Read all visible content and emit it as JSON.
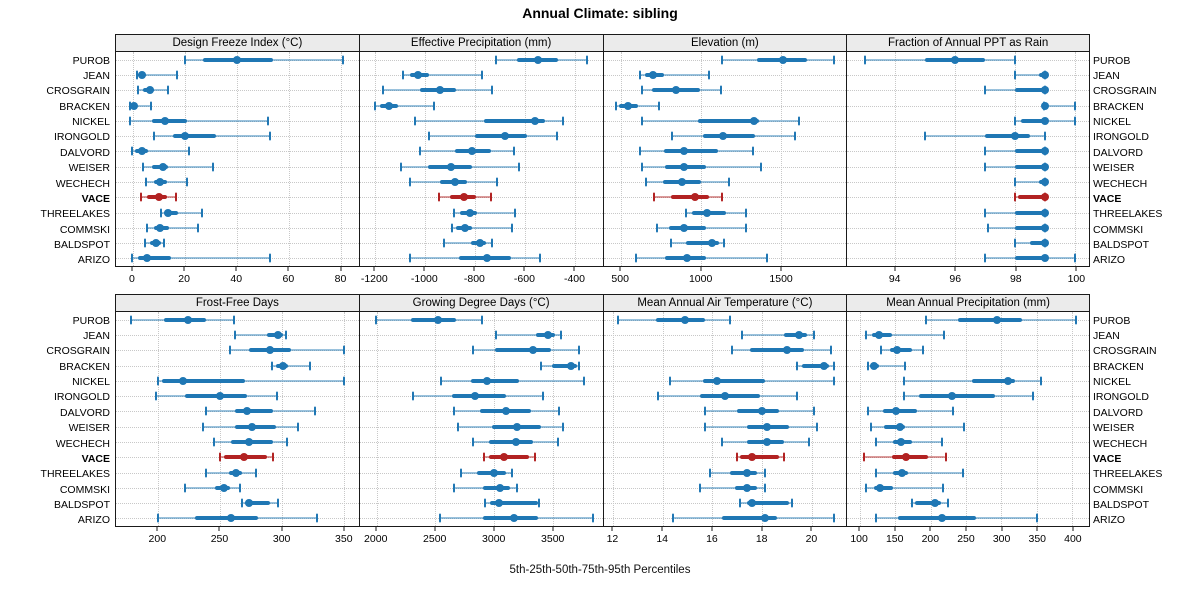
{
  "title": "Annual Climate: sibling",
  "xlabel": "5th-25th-50th-75th-95th Percentiles",
  "highlight_site": "VACE",
  "colors": {
    "series_blue": "#1f77b4",
    "highlight_red": "#b22222",
    "panel_header_bg": "#ebebeb",
    "grid": "#c8c8c8",
    "border": "#1a1a1a"
  },
  "sites": [
    "PUROB",
    "JEAN",
    "CROSGRAIN",
    "BRACKEN",
    "NICKEL",
    "IRONGOLD",
    "DALVORD",
    "WEISER",
    "WECHECH",
    "VACE",
    "THREELAKES",
    "COMMSKI",
    "BALDSPOT",
    "ARIZO"
  ],
  "chart_data": {
    "type": "percentile-interval",
    "percentiles": [
      5,
      25,
      50,
      75,
      95
    ],
    "layout": {
      "rows": 2,
      "cols": 4,
      "grid": "dotted",
      "highlight_site": "VACE"
    },
    "panels": [
      {
        "title": "Design Freeze Index (°C)",
        "domain": [
          -6.5,
          87
        ],
        "ticks": [
          0,
          20,
          40,
          60,
          80
        ],
        "values": [
          [
            20,
            27,
            40,
            54,
            81
          ],
          [
            1.5,
            2,
            3.5,
            5,
            17
          ],
          [
            2,
            4,
            6.5,
            8,
            13.5
          ],
          [
            -1,
            -0.5,
            0.3,
            1.5,
            7
          ],
          [
            -1,
            7.5,
            12.5,
            21,
            52
          ],
          [
            8,
            15.5,
            20,
            32,
            53
          ],
          [
            -0.5,
            1,
            3.5,
            6,
            21.5
          ],
          [
            4,
            7.5,
            11.5,
            13.5,
            31
          ],
          [
            5,
            8,
            10.5,
            13,
            21
          ],
          [
            3,
            5.5,
            10,
            13,
            16.5
          ],
          [
            11,
            12,
            13.5,
            17.5,
            26.5
          ],
          [
            5.5,
            8,
            10.5,
            14,
            25
          ],
          [
            4.5,
            6.5,
            9,
            11,
            12
          ],
          [
            -0.5,
            2,
            5.5,
            14.5,
            53
          ]
        ]
      },
      {
        "title": "Effective Precipitation (mm)",
        "domain": [
          -1262,
          -288
        ],
        "ticks": [
          -1200,
          -1000,
          -800,
          -600,
          -400
        ],
        "values": [
          [
            -715,
            -630,
            -545,
            -465,
            -350
          ],
          [
            -1090,
            -1060,
            -1030,
            -985,
            -770
          ],
          [
            -1170,
            -1020,
            -940,
            -875,
            -730
          ],
          [
            -1200,
            -1180,
            -1145,
            -1110,
            -965
          ],
          [
            -1040,
            -765,
            -560,
            -520,
            -445
          ],
          [
            -985,
            -800,
            -680,
            -590,
            -470
          ],
          [
            -1020,
            -880,
            -810,
            -735,
            -645
          ],
          [
            -1095,
            -990,
            -895,
            -810,
            -625
          ],
          [
            -1060,
            -940,
            -880,
            -830,
            -710
          ],
          [
            -945,
            -900,
            -845,
            -795,
            -735
          ],
          [
            -885,
            -860,
            -820,
            -790,
            -640
          ],
          [
            -890,
            -875,
            -840,
            -810,
            -650
          ],
          [
            -925,
            -815,
            -780,
            -755,
            -730
          ],
          [
            -1060,
            -865,
            -750,
            -655,
            -540
          ]
        ]
      },
      {
        "title": "Elevation (m)",
        "domain": [
          390,
          1905
        ],
        "ticks": [
          500,
          1000,
          1500
        ],
        "values": [
          [
            1130,
            1345,
            1510,
            1660,
            1830
          ],
          [
            615,
            650,
            700,
            770,
            1050
          ],
          [
            630,
            690,
            840,
            990,
            1125
          ],
          [
            470,
            485,
            545,
            605,
            735
          ],
          [
            630,
            980,
            1330,
            1360,
            1610
          ],
          [
            815,
            1010,
            1135,
            1335,
            1585
          ],
          [
            615,
            770,
            890,
            1105,
            1320
          ],
          [
            630,
            775,
            890,
            1030,
            1370
          ],
          [
            655,
            760,
            880,
            1000,
            1175
          ],
          [
            705,
            810,
            960,
            1050,
            1130
          ],
          [
            905,
            945,
            1035,
            1155,
            1280
          ],
          [
            725,
            800,
            895,
            1030,
            1280
          ],
          [
            810,
            905,
            1070,
            1110,
            1140
          ],
          [
            590,
            775,
            910,
            1030,
            1410
          ]
        ]
      },
      {
        "title": "Fraction of Annual PPT as Rain",
        "domain": [
          92.4,
          100.45
        ],
        "ticks": [
          94,
          96,
          98,
          100
        ],
        "values": [
          [
            93,
            95,
            96,
            97,
            98
          ],
          [
            98,
            98.8,
            99,
            99,
            99
          ],
          [
            97,
            98,
            99,
            99,
            99
          ],
          [
            98.95,
            99,
            99,
            99.1,
            100
          ],
          [
            98,
            98.2,
            99,
            99,
            100
          ],
          [
            95,
            97,
            98,
            98.5,
            99
          ],
          [
            97,
            98,
            99,
            99,
            99
          ],
          [
            97,
            98,
            99,
            99,
            99
          ],
          [
            98,
            98.8,
            99,
            99,
            99
          ],
          [
            98,
            98.1,
            99,
            99,
            99
          ],
          [
            97,
            98,
            99,
            99,
            99
          ],
          [
            97.1,
            98,
            99,
            99,
            99
          ],
          [
            98,
            98.5,
            99,
            99,
            99
          ],
          [
            97,
            98,
            99,
            99,
            100
          ]
        ]
      },
      {
        "title": "Frost-Free Days",
        "domain": [
          166,
          362
        ],
        "ticks": [
          200,
          250,
          300,
          350
        ],
        "values": [
          [
            178,
            205,
            224,
            239,
            261
          ],
          [
            262,
            288,
            297,
            301,
            303
          ],
          [
            258,
            273,
            290,
            307,
            350
          ],
          [
            292,
            295,
            301,
            305,
            323
          ],
          [
            200,
            203,
            220,
            270,
            350
          ],
          [
            198,
            222,
            250,
            272,
            296
          ],
          [
            239,
            262,
            272,
            293,
            327
          ],
          [
            236,
            262,
            276,
            295,
            313
          ],
          [
            245,
            259,
            273,
            293,
            304
          ],
          [
            250,
            253,
            269,
            288,
            293
          ],
          [
            239,
            257,
            263,
            268,
            279
          ],
          [
            222,
            246,
            253,
            258,
            266
          ],
          [
            268,
            270,
            273,
            290,
            297
          ],
          [
            200,
            230,
            259,
            281,
            328
          ]
        ]
      },
      {
        "title": "Growing Degree Days (°C)",
        "domain": [
          1856,
          3922
        ],
        "ticks": [
          2000,
          2500,
          3000,
          3500
        ],
        "values": [
          [
            1995,
            2295,
            2520,
            2675,
            2895
          ],
          [
            3015,
            3355,
            3460,
            3520,
            3570
          ],
          [
            2820,
            3010,
            3330,
            3480,
            3720
          ],
          [
            3400,
            3495,
            3655,
            3705,
            3720
          ],
          [
            2550,
            2805,
            2940,
            3215,
            3765
          ],
          [
            2305,
            2640,
            2835,
            3100,
            3415
          ],
          [
            2660,
            2880,
            3100,
            3315,
            3550
          ],
          [
            2690,
            2980,
            3195,
            3395,
            3585
          ],
          [
            2820,
            2960,
            3185,
            3330,
            3545
          ],
          [
            2915,
            2960,
            3085,
            3300,
            3350
          ],
          [
            2720,
            2855,
            3000,
            3105,
            3155
          ],
          [
            2655,
            2905,
            3050,
            3135,
            3195
          ],
          [
            2925,
            2965,
            3045,
            3370,
            3380
          ],
          [
            2535,
            2905,
            3165,
            3375,
            3840
          ]
        ]
      },
      {
        "title": "Mean Annual Air Temperature (°C)",
        "domain": [
          11.6,
          21.4
        ],
        "ticks": [
          12,
          14,
          16,
          18,
          20
        ],
        "values": [
          [
            12.2,
            13.7,
            14.9,
            15.7,
            16.7
          ],
          [
            17.2,
            18.9,
            19.5,
            19.8,
            20.1
          ],
          [
            16.8,
            17.5,
            19,
            19.7,
            20.8
          ],
          [
            19.4,
            19.6,
            20.5,
            20.7,
            20.9
          ],
          [
            14.3,
            15.6,
            16.2,
            18.1,
            20.9
          ],
          [
            13.8,
            15.5,
            16.5,
            17.9,
            19.4
          ],
          [
            15.7,
            17,
            18,
            18.7,
            20.1
          ],
          [
            15.7,
            17.4,
            18.2,
            19.1,
            20.2
          ],
          [
            16.4,
            17.4,
            18.2,
            18.9,
            19.9
          ],
          [
            17,
            17.1,
            17.6,
            18.7,
            18.9
          ],
          [
            15.9,
            16.7,
            17.4,
            17.8,
            18.1
          ],
          [
            15.5,
            16.9,
            17.4,
            17.8,
            18.1
          ],
          [
            17.1,
            17.4,
            17.6,
            19.1,
            19.2
          ],
          [
            14.4,
            16.4,
            18.1,
            18.6,
            20.9
          ]
        ]
      },
      {
        "title": "Mean Annual Precipitation (mm)",
        "domain": [
          82,
          424
        ],
        "ticks": [
          100,
          150,
          200,
          250,
          300,
          350,
          400
        ],
        "values": [
          [
            193,
            238,
            294,
            329,
            405
          ],
          [
            109,
            117,
            127,
            145,
            219
          ],
          [
            130,
            142,
            152,
            173,
            189
          ],
          [
            111,
            114,
            120,
            127,
            164
          ],
          [
            162,
            258,
            309,
            320,
            356
          ],
          [
            162,
            184,
            230,
            291,
            345
          ],
          [
            111,
            133,
            151,
            180,
            231
          ],
          [
            115,
            134,
            156,
            164,
            247
          ],
          [
            122,
            147,
            158,
            174,
            216
          ],
          [
            106,
            145,
            165,
            196,
            221
          ],
          [
            122,
            147,
            159,
            168,
            246
          ],
          [
            109,
            120,
            128,
            147,
            217
          ],
          [
            173,
            178,
            206,
            215,
            224
          ],
          [
            122,
            154,
            216,
            264,
            351
          ]
        ]
      }
    ]
  }
}
